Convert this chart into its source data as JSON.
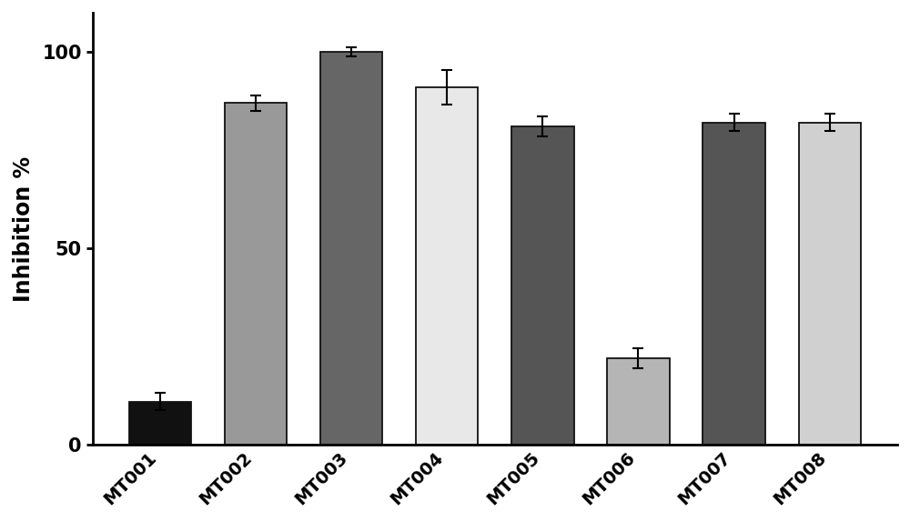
{
  "categories": [
    "MT001",
    "MT002",
    "MT003",
    "MT004",
    "MT005",
    "MT006",
    "MT007",
    "MT008"
  ],
  "values": [
    11,
    87,
    100,
    91,
    81,
    22,
    82,
    82
  ],
  "errors": [
    2.2,
    2.0,
    1.2,
    4.5,
    2.5,
    2.5,
    2.2,
    2.2
  ],
  "bar_colors": [
    "#111111",
    "#999999",
    "#666666",
    "#e8e8e8",
    "#555555",
    "#b5b5b5",
    "#555555",
    "#d0d0d0"
  ],
  "bar_edgecolor": "#111111",
  "ylabel": "Inhibition %",
  "ylim": [
    0,
    110
  ],
  "yticks": [
    0,
    50,
    100
  ],
  "background_color": "#ffffff",
  "bar_width": 0.65,
  "ylabel_fontsize": 17,
  "ytick_fontsize": 15,
  "xtick_fontsize": 14,
  "xlabel_rotation": 45,
  "xtick_color": "#000000",
  "ytick_color": "#000000"
}
